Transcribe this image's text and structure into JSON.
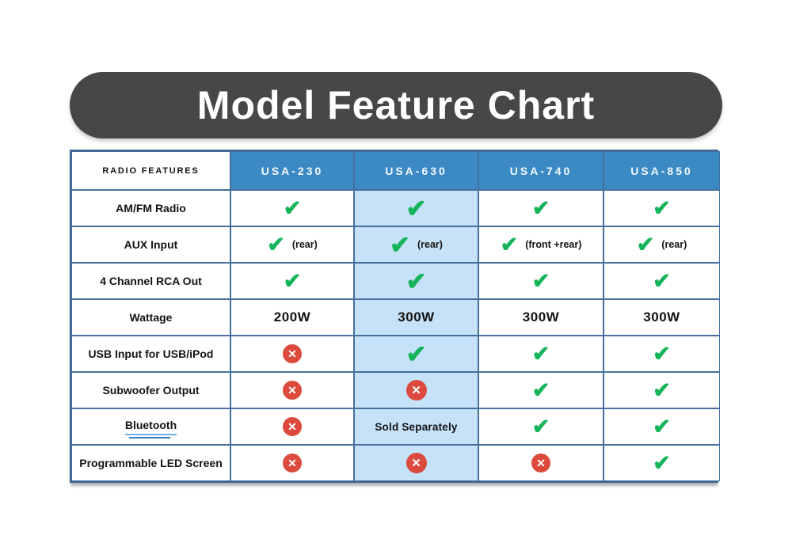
{
  "title": "Model Feature Chart",
  "icons": {
    "check": "✔",
    "cross": "✕"
  },
  "colors": {
    "pill_gray": "#474747",
    "header_blue": "#3b8ac3",
    "highlight_blue": "#c5e2f9",
    "check_green": "#16b45a",
    "cross_red": "#dc4a3e",
    "border_blue": "#466f9e"
  },
  "table": {
    "feature_header": "RADIO FEATURES",
    "models": [
      "USA-230",
      "USA-630",
      "USA-740",
      "USA-850"
    ],
    "highlighted_model": "USA-630",
    "rows": [
      {
        "feature": "AM/FM Radio",
        "cells": [
          {
            "type": "check"
          },
          {
            "type": "check"
          },
          {
            "type": "check"
          },
          {
            "type": "check"
          }
        ]
      },
      {
        "feature": "AUX Input",
        "cells": [
          {
            "type": "check",
            "note": "(rear)"
          },
          {
            "type": "check",
            "note": "(rear)"
          },
          {
            "type": "check",
            "note": "(front +rear)"
          },
          {
            "type": "check",
            "note": "(rear)"
          }
        ]
      },
      {
        "feature": "4 Channel RCA Out",
        "cells": [
          {
            "type": "check"
          },
          {
            "type": "check"
          },
          {
            "type": "check"
          },
          {
            "type": "check"
          }
        ]
      },
      {
        "feature": "Wattage",
        "cells": [
          {
            "type": "text",
            "text": "200W"
          },
          {
            "type": "text",
            "text": "300W"
          },
          {
            "type": "text",
            "text": "300W"
          },
          {
            "type": "text",
            "text": "300W"
          }
        ]
      },
      {
        "feature": "USB Input for USB/iPod",
        "cells": [
          {
            "type": "cross"
          },
          {
            "type": "check"
          },
          {
            "type": "check"
          },
          {
            "type": "check"
          }
        ]
      },
      {
        "feature": "Subwoofer Output",
        "cells": [
          {
            "type": "cross"
          },
          {
            "type": "cross"
          },
          {
            "type": "check"
          },
          {
            "type": "check"
          }
        ]
      },
      {
        "feature": "Bluetooth",
        "underlined": true,
        "cells": [
          {
            "type": "cross"
          },
          {
            "type": "text",
            "text": "Sold Separately",
            "small": true
          },
          {
            "type": "check"
          },
          {
            "type": "check"
          }
        ]
      },
      {
        "feature": "Programmable LED Screen",
        "cells": [
          {
            "type": "cross"
          },
          {
            "type": "cross"
          },
          {
            "type": "cross"
          },
          {
            "type": "check"
          }
        ]
      }
    ]
  },
  "chart_data": {
    "type": "table",
    "title": "Model Feature Chart",
    "columns": [
      "RADIO FEATURES",
      "USA-230",
      "USA-630",
      "USA-740",
      "USA-850"
    ],
    "rows": [
      [
        "AM/FM Radio",
        "yes",
        "yes",
        "yes",
        "yes"
      ],
      [
        "AUX Input",
        "yes (rear)",
        "yes (rear)",
        "yes (front +rear)",
        "yes (rear)"
      ],
      [
        "4 Channel RCA Out",
        "yes",
        "yes",
        "yes",
        "yes"
      ],
      [
        "Wattage",
        "200W",
        "300W",
        "300W",
        "300W"
      ],
      [
        "USB Input for USB/iPod",
        "no",
        "yes",
        "yes",
        "yes"
      ],
      [
        "Subwoofer Output",
        "no",
        "no",
        "yes",
        "yes"
      ],
      [
        "Bluetooth",
        "no",
        "Sold Separately",
        "yes",
        "yes"
      ],
      [
        "Programmable LED Screen",
        "no",
        "no",
        "no",
        "yes"
      ]
    ],
    "highlighted_column": "USA-630",
    "legend": {
      "check": "feature included",
      "cross": "feature not included"
    }
  }
}
